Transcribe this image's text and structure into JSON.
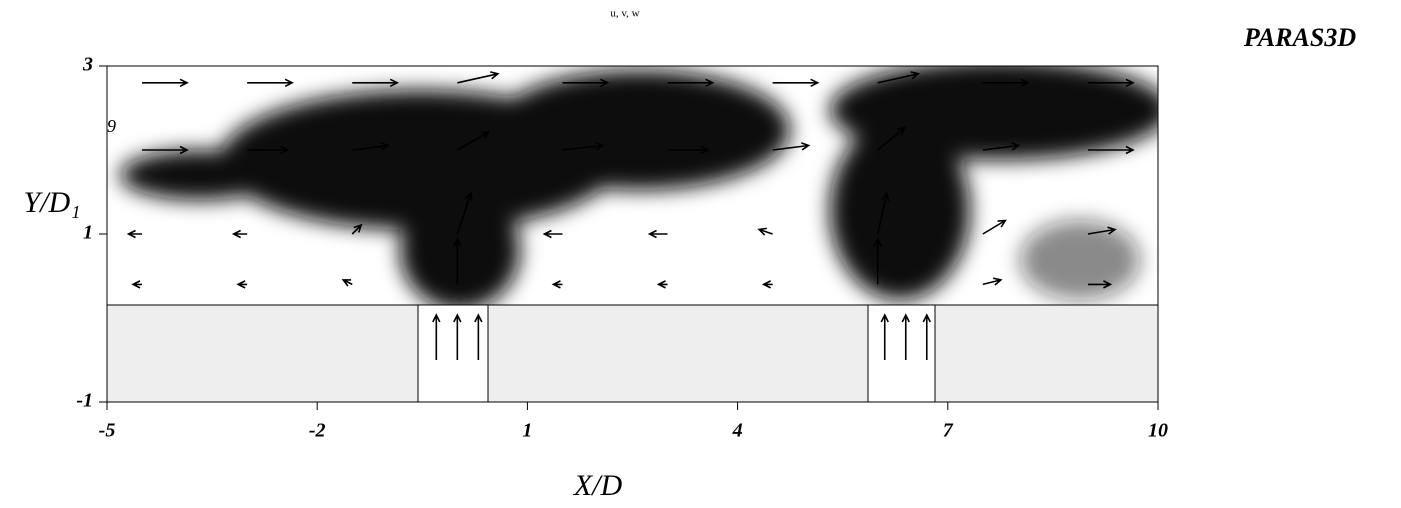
{
  "chart_data": {
    "type": "quiver",
    "title": "u, v, w",
    "logo": "PARAS3D",
    "xlabel": "X/D",
    "ylabel": "Y/D₁",
    "annotation": "9",
    "xlim": [
      -5,
      10
    ],
    "ylim": [
      -1,
      3
    ],
    "xticks": [
      -5,
      -2,
      1,
      4,
      7,
      10
    ],
    "yticks": [
      -1,
      1,
      3
    ],
    "color": "#000000",
    "vectors": {
      "x": [
        -4.5,
        -3,
        -1.5,
        0,
        1.5,
        3,
        4.5,
        6,
        7.5,
        9,
        -4.5,
        -3,
        -1.5,
        0,
        1.5,
        3,
        4.5,
        6,
        7.5,
        9,
        -4.5,
        -3,
        -1.5,
        0,
        1.5,
        3,
        4.5,
        6,
        7.5,
        9,
        -4.5,
        -3,
        -1.5,
        0,
        1.5,
        3,
        4.5,
        6,
        7.5,
        9,
        -0.3,
        0,
        0.3,
        6.1,
        6.4,
        6.7
      ],
      "y": [
        2.8,
        2.8,
        2.8,
        2.8,
        2.8,
        2.8,
        2.8,
        2.8,
        2.8,
        2.8,
        2,
        2,
        2,
        2,
        2,
        2,
        2,
        2,
        2,
        2,
        1,
        1,
        1,
        1,
        1,
        1,
        1,
        1,
        1,
        1,
        0.4,
        0.4,
        0.4,
        0.4,
        0.4,
        0.4,
        0.4,
        0.4,
        0.4,
        0.4,
        -0.5,
        -0.5,
        -0.5,
        -0.5,
        -0.5,
        -0.5
      ],
      "u": [
        1,
        1,
        1,
        0.9,
        1,
        1,
        1,
        0.9,
        1,
        1,
        1,
        0.9,
        0.8,
        0.7,
        0.9,
        0.9,
        0.8,
        0.6,
        0.8,
        1,
        -0.3,
        -0.3,
        0.2,
        0.3,
        -0.4,
        -0.4,
        -0.3,
        0.2,
        0.5,
        0.6,
        -0.2,
        -0.2,
        -0.2,
        0,
        -0.2,
        -0.2,
        -0.2,
        0,
        0.4,
        0.5,
        0,
        0,
        0,
        0,
        0,
        0
      ],
      "v": [
        0,
        0,
        0,
        0.2,
        0,
        0,
        0,
        0.2,
        0,
        0,
        0,
        0,
        0.1,
        0.4,
        0.1,
        0,
        0.1,
        0.5,
        0.1,
        0,
        0,
        0,
        0.2,
        0.9,
        0,
        0,
        0.1,
        0.9,
        0.3,
        0.1,
        0,
        0,
        0.1,
        1,
        0,
        0,
        0,
        1,
        0.1,
        0,
        1,
        1,
        1,
        1,
        1,
        1
      ]
    }
  }
}
